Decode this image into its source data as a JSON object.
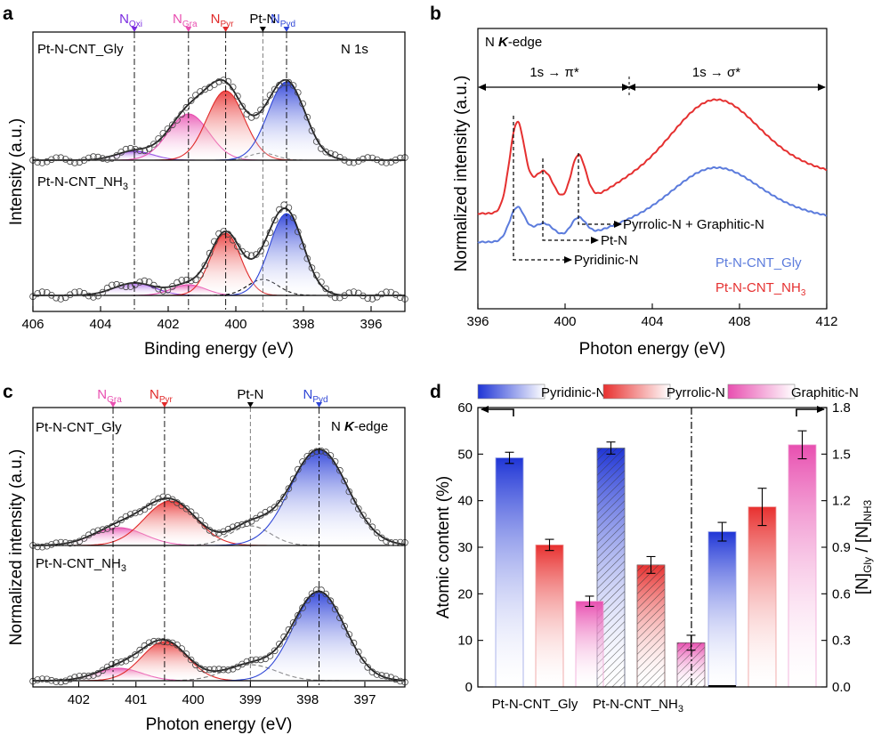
{
  "colors": {
    "pyd": "#2f46d6",
    "pyr": "#e02a2a",
    "gra": "#e84fb0",
    "oxi": "#7a2be0",
    "ptn": "#000000",
    "gly_line": "#5b7bdc",
    "nh3_line": "#e53030"
  },
  "panel_labels": {
    "a": "a",
    "b": "b",
    "c": "c",
    "d": "d"
  },
  "panel_a": {
    "title_right": "N 1s",
    "sample_top": "Pt-N-CNT_Gly",
    "sample_bot_base": "Pt-N-CNT_NH",
    "sample_bot_sub": "3",
    "xlabel": "Binding energy (eV)",
    "ylabel": "Intensity (a.u.)",
    "ticks": [
      "406",
      "404",
      "402",
      "400",
      "398",
      "396"
    ],
    "tick_values": [
      406,
      404,
      402,
      400,
      398,
      396
    ],
    "xlim": [
      406,
      395
    ],
    "markers": [
      {
        "id": "oxi",
        "base": "N",
        "sub": "Oxi",
        "x": 403.0
      },
      {
        "id": "gra",
        "base": "N",
        "sub": "Gra",
        "x": 401.4
      },
      {
        "id": "pyr",
        "base": "N",
        "sub": "Pyr",
        "x": 400.3
      },
      {
        "id": "ptn",
        "base": "Pt-N",
        "sub": "",
        "x": 399.2
      },
      {
        "id": "pyd",
        "base": "N",
        "sub": "Pyd",
        "x": 398.5
      }
    ]
  },
  "panel_b": {
    "title": "N K-edge",
    "title_base": "N ",
    "title_k": "K",
    "title_suffix": "-edge",
    "xlabel": "Photon energy (eV)",
    "ylabel": "Normalized intensity (a.u.)",
    "ticks": [
      "396",
      "400",
      "404",
      "408",
      "412"
    ],
    "tick_values": [
      396,
      400,
      404,
      408,
      412
    ],
    "xlim": [
      396,
      412
    ],
    "region_pi": "1s → π*",
    "region_sigma": "1s → σ*",
    "annotations": [
      "Pyrrolic-N + Graphitic-N",
      "Pt-N",
      "Pyridinic-N"
    ],
    "legend": [
      "Pt-N-CNT_Gly",
      "Pt-N-CNT_NH"
    ],
    "legend_sub": "3"
  },
  "panel_c": {
    "title_base": "N ",
    "title_k": "K",
    "title_suffix": "-edge",
    "sample_top": "Pt-N-CNT_Gly",
    "sample_bot_base": "Pt-N-CNT_NH",
    "sample_bot_sub": "3",
    "xlabel": "Photon energy (eV)",
    "ylabel": "Normalized intensity (a.u.)",
    "ticks": [
      "402",
      "401",
      "400",
      "399",
      "398",
      "397"
    ],
    "tick_values": [
      402,
      401,
      400,
      399,
      398,
      397
    ],
    "xlim": [
      402.8,
      396.3
    ],
    "markers": [
      {
        "id": "gra",
        "base": "N",
        "sub": "Gra",
        "x": 401.4
      },
      {
        "id": "pyr",
        "base": "N",
        "sub": "Pyr",
        "x": 400.5
      },
      {
        "id": "ptn",
        "base": "Pt-N",
        "sub": "",
        "x": 399.0
      },
      {
        "id": "pyd",
        "base": "N",
        "sub": "Pyd",
        "x": 397.8
      }
    ]
  },
  "chart_data": {
    "type": "bar",
    "legend": [
      "Pyridinic-N",
      "Pyrrolic-N",
      "Graphitic-N"
    ],
    "categories": [
      "Pt-N-CNT_Gly",
      "Pt-N-CNT_NH"
    ],
    "category_sub": "3",
    "ylabel_left": "Atomic content (%)",
    "ylabel_right_parts": [
      "[N]",
      "Gly",
      " / [N]",
      "NH3"
    ],
    "ylim_left": [
      0,
      60
    ],
    "ylim_right": [
      0,
      1.8
    ],
    "ticks_left": [
      "0",
      "10",
      "20",
      "30",
      "40",
      "50",
      "60"
    ],
    "ticks_right": [
      "0.0",
      "0.3",
      "0.6",
      "0.9",
      "1.2",
      "1.5",
      "1.8"
    ],
    "series": [
      {
        "name": "Pyridinic-N",
        "values": [
          49.2,
          51.3
        ],
        "errors": [
          1.2,
          1.3
        ]
      },
      {
        "name": "Pyrrolic-N",
        "values": [
          30.5,
          26.2
        ],
        "errors": [
          1.2,
          1.8
        ]
      },
      {
        "name": "Graphitic-N",
        "values": [
          18.4,
          9.5
        ],
        "errors": [
          1.1,
          1.6
        ]
      }
    ],
    "ratio_series": {
      "values": [
        1.0,
        1.16,
        1.56
      ],
      "errors": [
        0.06,
        0.12,
        0.09
      ]
    }
  }
}
